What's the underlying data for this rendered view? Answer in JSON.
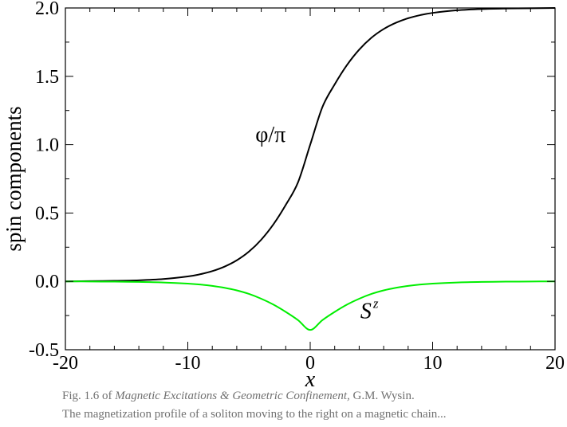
{
  "chart_data": {
    "type": "line",
    "xlabel": "x",
    "ylabel": "spin components",
    "xlim": [
      -20,
      20
    ],
    "ylim": [
      -0.5,
      2.0
    ],
    "xticks": [
      -20,
      -10,
      0,
      10,
      20
    ],
    "xtick_labels": [
      "-20",
      "-10",
      "0",
      "10",
      "20"
    ],
    "yticks": [
      -0.5,
      0.0,
      0.5,
      1.0,
      1.5,
      2.0
    ],
    "ytick_labels": [
      "-0.5",
      "0.0",
      "0.5",
      "1.0",
      "1.5",
      "2.0"
    ],
    "grid": false,
    "series": [
      {
        "name": "φ/π",
        "color": "#000000",
        "x": [
          -20,
          -18,
          -16,
          -14,
          -12,
          -10,
          -9,
          -8,
          -7,
          -6,
          -5,
          -4,
          -3,
          -2,
          -1,
          0,
          1,
          2,
          3,
          4,
          5,
          6,
          7,
          8,
          9,
          10,
          12,
          14,
          16,
          18,
          20
        ],
        "y": [
          0.0,
          0.002,
          0.004,
          0.008,
          0.017,
          0.036,
          0.052,
          0.075,
          0.108,
          0.154,
          0.218,
          0.305,
          0.418,
          0.559,
          0.724,
          1.0,
          1.276,
          1.441,
          1.582,
          1.695,
          1.782,
          1.846,
          1.892,
          1.925,
          1.948,
          1.964,
          1.983,
          1.992,
          1.996,
          1.998,
          2.0
        ]
      },
      {
        "name": "S^z",
        "color": "#00ee00",
        "x": [
          -20,
          -18,
          -16,
          -14,
          -12,
          -10,
          -9,
          -8,
          -7,
          -6,
          -5,
          -4,
          -3,
          -2,
          -1,
          0,
          1,
          2,
          3,
          4,
          5,
          6,
          7,
          8,
          9,
          10,
          12,
          14,
          16,
          18,
          20
        ],
        "y": [
          0.0,
          -0.001,
          -0.002,
          -0.004,
          -0.008,
          -0.016,
          -0.023,
          -0.033,
          -0.047,
          -0.066,
          -0.092,
          -0.127,
          -0.17,
          -0.223,
          -0.283,
          -0.355,
          -0.283,
          -0.223,
          -0.17,
          -0.127,
          -0.092,
          -0.066,
          -0.047,
          -0.033,
          -0.023,
          -0.016,
          -0.008,
          -0.004,
          -0.002,
          -0.001,
          0.0
        ]
      }
    ],
    "annotations": [
      {
        "key": "phi",
        "text_main": "φ/π",
        "x": -2,
        "y": 1.02
      },
      {
        "key": "sz",
        "text_main": "S",
        "text_sup": "z",
        "x": 5.4,
        "y": -0.27
      }
    ]
  },
  "caption": {
    "line1_prefix": "Fig. 1.6 of ",
    "line1_title": "Magnetic Excitations & Geometric Confinement,",
    "line1_suffix": " G.M. Wysin.",
    "line2": "The magnetization profile of a soliton moving to the right on a magnetic chain..."
  }
}
